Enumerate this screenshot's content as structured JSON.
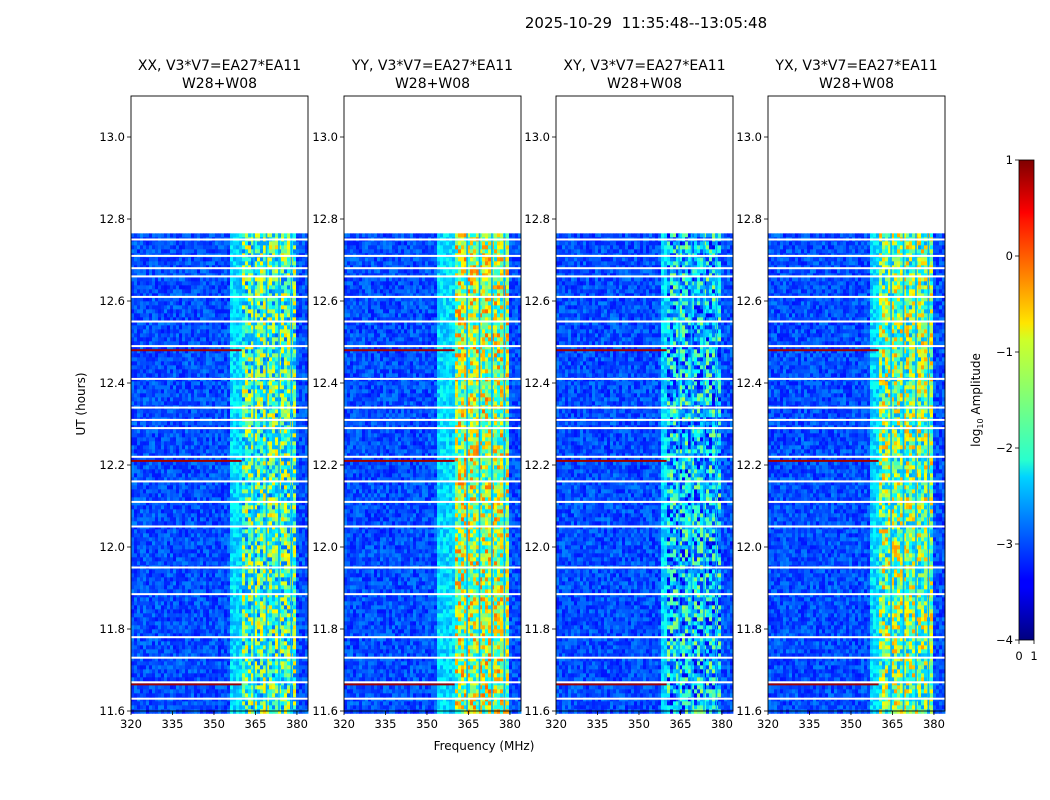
{
  "chart_data": {
    "type": "heatmap",
    "suptitle": "2025-10-29  11:35:48--13:05:48",
    "xlabel": "Frequency (MHz)",
    "ylabel": "UT (hours)",
    "xlim": [
      320,
      384
    ],
    "ylim": [
      11.6,
      13.1
    ],
    "xticks": [
      "320",
      "335",
      "350",
      "365",
      "380"
    ],
    "xtick_values": [
      320,
      335,
      350,
      365,
      380
    ],
    "yticks": [
      "11.6",
      "11.8",
      "12.0",
      "12.2",
      "12.4",
      "12.6",
      "12.8",
      "13.0"
    ],
    "ytick_values": [
      11.6,
      11.8,
      12.0,
      12.2,
      12.4,
      12.6,
      12.8,
      13.0
    ],
    "data_time_range_hours": [
      11.597,
      12.765
    ],
    "band_freq_range_mhz": [
      360,
      379.5
    ],
    "band_channel_gaps_mhz": [
      364.5,
      369,
      373.5,
      378
    ],
    "gap_times_hours": [
      11.63,
      11.67,
      11.73,
      11.78,
      11.885,
      11.95,
      12.05,
      12.11,
      12.16,
      12.22,
      12.29,
      12.31,
      12.34,
      12.41,
      12.49,
      12.55,
      12.61,
      12.66,
      12.68,
      12.71,
      12.75
    ],
    "rfi_times_hours": [
      11.665,
      12.21,
      12.48
    ],
    "panels": [
      {
        "name": "XX, V3*V7=EA27*EA11",
        "baseline": "W28+W08",
        "band_level": 0.45,
        "band_edge": 360
      },
      {
        "name": "YY, V3*V7=EA27*EA11",
        "baseline": "W28+W08",
        "band_level": 0.55,
        "band_edge": 358
      },
      {
        "name": "XY, V3*V7=EA27*EA11",
        "baseline": "W28+W08",
        "band_level": 0.32,
        "band_edge": 362
      },
      {
        "name": "YX, V3*V7=EA27*EA11",
        "baseline": "W28+W08",
        "band_level": 0.5,
        "band_edge": 361
      }
    ],
    "colorbar": {
      "label_prefix": "log",
      "label_sub": "10",
      "label_suffix": " Amplitude",
      "range": [
        -4,
        1
      ],
      "ticks": [
        "1",
        "0",
        "−1",
        "−2",
        "−3",
        "−4"
      ],
      "tick_values": [
        1,
        0,
        -1,
        -2,
        -3,
        -4
      ],
      "bottom_ticks": [
        "0",
        "1"
      ],
      "colormap": "jet"
    }
  }
}
